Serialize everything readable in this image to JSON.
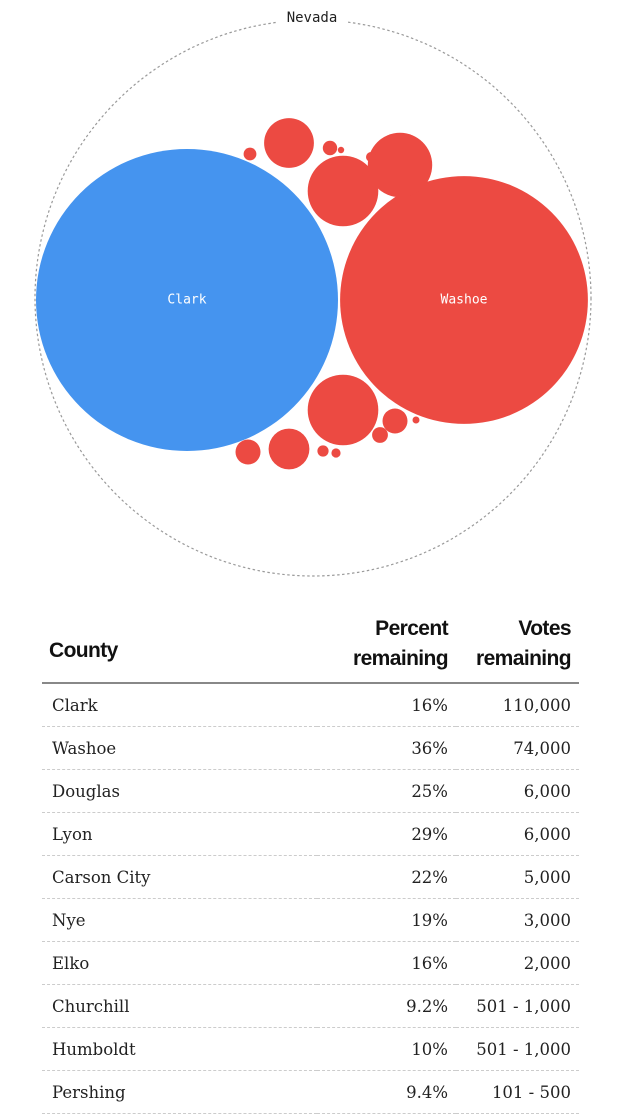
{
  "chart_data": {
    "type": "bubble",
    "state": "Nevada",
    "colors": {
      "blue": "#4594ef",
      "red": "#ec4a42",
      "outline": "#9a9a9a"
    },
    "bubbles": [
      {
        "county": "Clark",
        "votes_remaining": 110000,
        "color": "blue",
        "label": "Clark"
      },
      {
        "county": "Washoe",
        "votes_remaining": 74000,
        "color": "red",
        "label": "Washoe"
      },
      {
        "county": "Douglas",
        "votes_remaining": 6000,
        "color": "red"
      },
      {
        "county": "Lyon",
        "votes_remaining": 6000,
        "color": "red"
      },
      {
        "county": "Carson City",
        "votes_remaining": 5000,
        "color": "red"
      },
      {
        "county": "Nye",
        "votes_remaining": 3000,
        "color": "red"
      },
      {
        "county": "Elko",
        "votes_remaining": 2000,
        "color": "red"
      },
      {
        "county": "Churchill",
        "votes_remaining": 750,
        "color": "red"
      },
      {
        "county": "Humboldt",
        "votes_remaining": 750,
        "color": "red"
      },
      {
        "county": "Pershing",
        "votes_remaining": 300,
        "color": "red"
      },
      {
        "county": "",
        "votes_remaining": 250,
        "color": "red"
      },
      {
        "county": "",
        "votes_remaining": 200,
        "color": "red"
      },
      {
        "county": "",
        "votes_remaining": 150,
        "color": "red"
      },
      {
        "county": "",
        "votes_remaining": 120,
        "color": "red"
      },
      {
        "county": "",
        "votes_remaining": 100,
        "color": "red"
      },
      {
        "county": "",
        "votes_remaining": 60,
        "color": "red"
      },
      {
        "county": "",
        "votes_remaining": 50,
        "color": "red"
      }
    ]
  },
  "table": {
    "headers": {
      "county": "County",
      "percent_line1": "Percent",
      "percent_line2": "remaining",
      "votes_line1": "Votes",
      "votes_line2": "remaining"
    },
    "rows": [
      {
        "county": "Clark",
        "percent": "16%",
        "votes": "110,000"
      },
      {
        "county": "Washoe",
        "percent": "36%",
        "votes": "74,000"
      },
      {
        "county": "Douglas",
        "percent": "25%",
        "votes": "6,000"
      },
      {
        "county": "Lyon",
        "percent": "29%",
        "votes": "6,000"
      },
      {
        "county": "Carson City",
        "percent": "22%",
        "votes": "5,000"
      },
      {
        "county": "Nye",
        "percent": "19%",
        "votes": "3,000"
      },
      {
        "county": "Elko",
        "percent": "16%",
        "votes": "2,000"
      },
      {
        "county": "Churchill",
        "percent": "9.2%",
        "votes": "501 - 1,000"
      },
      {
        "county": "Humboldt",
        "percent": "10%",
        "votes": "501 - 1,000"
      },
      {
        "county": "Pershing",
        "percent": "9.4%",
        "votes": "101 - 500"
      }
    ]
  }
}
